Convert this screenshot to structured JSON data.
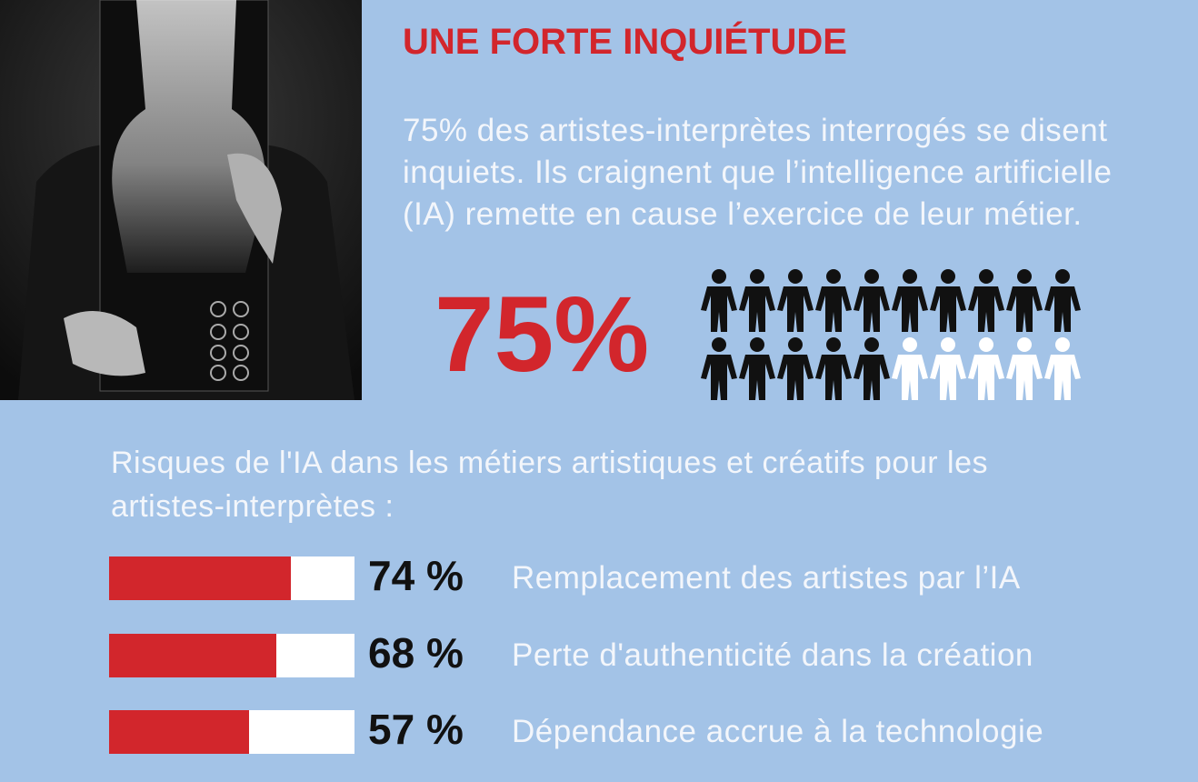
{
  "title": "UNE FORTE INQUIÉTUDE",
  "intro": [
    "75% des artistes-interprètes interrogés se disent",
    "inquiets. Ils craignent que l’intelligence artificielle",
    "(IA) remette en cause l’exercice de leur métier."
  ],
  "headline": {
    "value": 75,
    "label": "75%"
  },
  "risks": {
    "title": [
      "Risques de l'IA dans les métiers artistiques et créatifs pour les",
      "artistes-interprètes :"
    ],
    "xlim": [
      0,
      100
    ],
    "items": [
      {
        "value": 74,
        "label": "74 %",
        "text": "Remplacement des artistes par l’IA"
      },
      {
        "value": 68,
        "label": "68 %",
        "text": "Perte d'authenticité dans la création"
      },
      {
        "value": 57,
        "label": "57 %",
        "text": "Dépendance accrue à la technologie"
      }
    ]
  }
}
